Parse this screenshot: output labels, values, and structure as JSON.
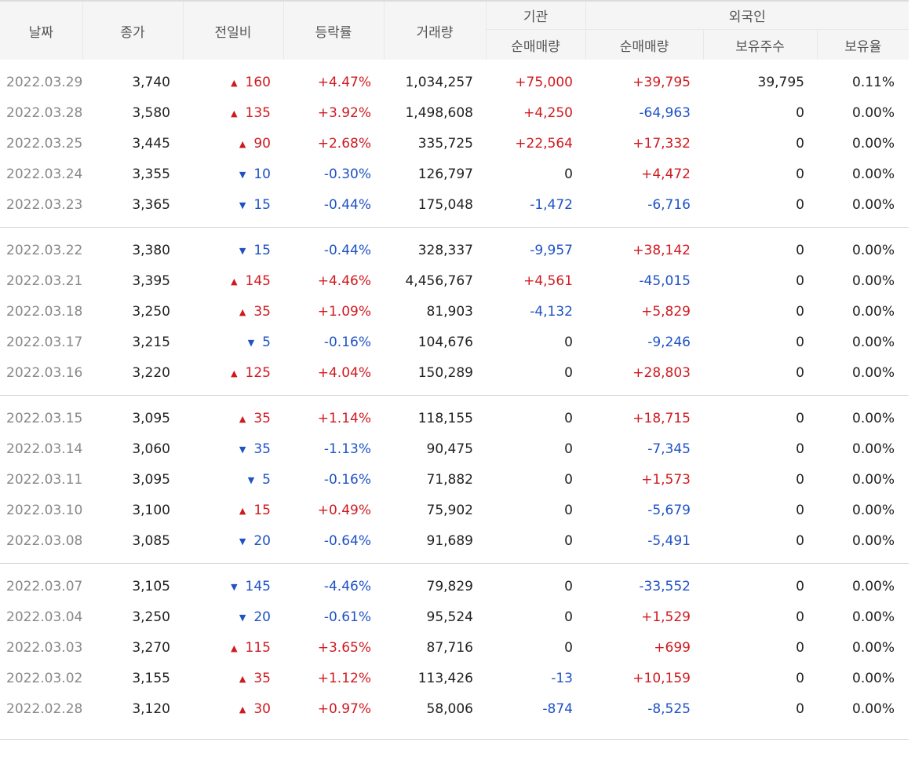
{
  "headers": {
    "date": "날짜",
    "close": "종가",
    "change": "전일비",
    "rate": "등락률",
    "volume": "거래량",
    "institution": "기관",
    "institution_net": "순매매량",
    "foreign": "외국인",
    "foreign_net": "순매매량",
    "foreign_shares": "보유주수",
    "foreign_ratio": "보유율"
  },
  "colors": {
    "up": "#d0191f",
    "down": "#1e52c6"
  },
  "groups": [
    [
      {
        "date": "2022.03.29",
        "close": "3,740",
        "dir": "up",
        "change": "160",
        "rate": "+4.47%",
        "volume": "1,034,257",
        "inst": "+75,000",
        "foreign": "+39,795",
        "shares": "39,795",
        "ratio": "0.11%"
      },
      {
        "date": "2022.03.28",
        "close": "3,580",
        "dir": "up",
        "change": "135",
        "rate": "+3.92%",
        "volume": "1,498,608",
        "inst": "+4,250",
        "foreign": "-64,963",
        "shares": "0",
        "ratio": "0.00%"
      },
      {
        "date": "2022.03.25",
        "close": "3,445",
        "dir": "up",
        "change": "90",
        "rate": "+2.68%",
        "volume": "335,725",
        "inst": "+22,564",
        "foreign": "+17,332",
        "shares": "0",
        "ratio": "0.00%"
      },
      {
        "date": "2022.03.24",
        "close": "3,355",
        "dir": "down",
        "change": "10",
        "rate": "-0.30%",
        "volume": "126,797",
        "inst": "0",
        "foreign": "+4,472",
        "shares": "0",
        "ratio": "0.00%"
      },
      {
        "date": "2022.03.23",
        "close": "3,365",
        "dir": "down",
        "change": "15",
        "rate": "-0.44%",
        "volume": "175,048",
        "inst": "-1,472",
        "foreign": "-6,716",
        "shares": "0",
        "ratio": "0.00%"
      }
    ],
    [
      {
        "date": "2022.03.22",
        "close": "3,380",
        "dir": "down",
        "change": "15",
        "rate": "-0.44%",
        "volume": "328,337",
        "inst": "-9,957",
        "foreign": "+38,142",
        "shares": "0",
        "ratio": "0.00%"
      },
      {
        "date": "2022.03.21",
        "close": "3,395",
        "dir": "up",
        "change": "145",
        "rate": "+4.46%",
        "volume": "4,456,767",
        "inst": "+4,561",
        "foreign": "-45,015",
        "shares": "0",
        "ratio": "0.00%"
      },
      {
        "date": "2022.03.18",
        "close": "3,250",
        "dir": "up",
        "change": "35",
        "rate": "+1.09%",
        "volume": "81,903",
        "inst": "-4,132",
        "foreign": "+5,829",
        "shares": "0",
        "ratio": "0.00%"
      },
      {
        "date": "2022.03.17",
        "close": "3,215",
        "dir": "down",
        "change": "5",
        "rate": "-0.16%",
        "volume": "104,676",
        "inst": "0",
        "foreign": "-9,246",
        "shares": "0",
        "ratio": "0.00%"
      },
      {
        "date": "2022.03.16",
        "close": "3,220",
        "dir": "up",
        "change": "125",
        "rate": "+4.04%",
        "volume": "150,289",
        "inst": "0",
        "foreign": "+28,803",
        "shares": "0",
        "ratio": "0.00%"
      }
    ],
    [
      {
        "date": "2022.03.15",
        "close": "3,095",
        "dir": "up",
        "change": "35",
        "rate": "+1.14%",
        "volume": "118,155",
        "inst": "0",
        "foreign": "+18,715",
        "shares": "0",
        "ratio": "0.00%"
      },
      {
        "date": "2022.03.14",
        "close": "3,060",
        "dir": "down",
        "change": "35",
        "rate": "-1.13%",
        "volume": "90,475",
        "inst": "0",
        "foreign": "-7,345",
        "shares": "0",
        "ratio": "0.00%"
      },
      {
        "date": "2022.03.11",
        "close": "3,095",
        "dir": "down",
        "change": "5",
        "rate": "-0.16%",
        "volume": "71,882",
        "inst": "0",
        "foreign": "+1,573",
        "shares": "0",
        "ratio": "0.00%"
      },
      {
        "date": "2022.03.10",
        "close": "3,100",
        "dir": "up",
        "change": "15",
        "rate": "+0.49%",
        "volume": "75,902",
        "inst": "0",
        "foreign": "-5,679",
        "shares": "0",
        "ratio": "0.00%"
      },
      {
        "date": "2022.03.08",
        "close": "3,085",
        "dir": "down",
        "change": "20",
        "rate": "-0.64%",
        "volume": "91,689",
        "inst": "0",
        "foreign": "-5,491",
        "shares": "0",
        "ratio": "0.00%"
      }
    ],
    [
      {
        "date": "2022.03.07",
        "close": "3,105",
        "dir": "down",
        "change": "145",
        "rate": "-4.46%",
        "volume": "79,829",
        "inst": "0",
        "foreign": "-33,552",
        "shares": "0",
        "ratio": "0.00%"
      },
      {
        "date": "2022.03.04",
        "close": "3,250",
        "dir": "down",
        "change": "20",
        "rate": "-0.61%",
        "volume": "95,524",
        "inst": "0",
        "foreign": "+1,529",
        "shares": "0",
        "ratio": "0.00%"
      },
      {
        "date": "2022.03.03",
        "close": "3,270",
        "dir": "up",
        "change": "115",
        "rate": "+3.65%",
        "volume": "87,716",
        "inst": "0",
        "foreign": "+699",
        "shares": "0",
        "ratio": "0.00%"
      },
      {
        "date": "2022.03.02",
        "close": "3,155",
        "dir": "up",
        "change": "35",
        "rate": "+1.12%",
        "volume": "113,426",
        "inst": "-13",
        "foreign": "+10,159",
        "shares": "0",
        "ratio": "0.00%"
      },
      {
        "date": "2022.02.28",
        "close": "3,120",
        "dir": "up",
        "change": "30",
        "rate": "+0.97%",
        "volume": "58,006",
        "inst": "-874",
        "foreign": "-8,525",
        "shares": "0",
        "ratio": "0.00%"
      }
    ]
  ]
}
